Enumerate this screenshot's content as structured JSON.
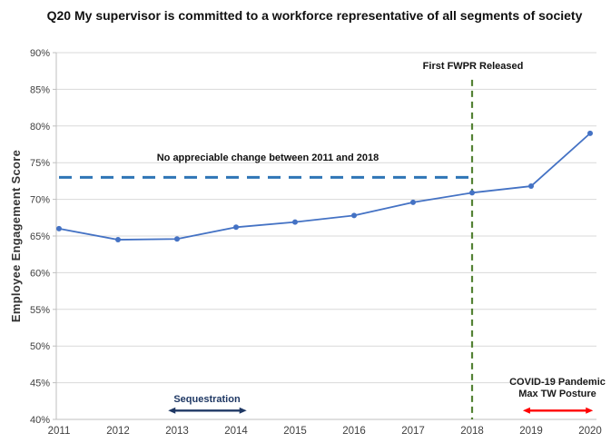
{
  "colors": {
    "series_line": "#4472C4",
    "reference_dashed": "#2E75B6",
    "event_line": "#548235",
    "sequestration_arrow": "#1F3864",
    "covid_arrow": "#FF0000",
    "gridline": "#D9D9D9",
    "axis": "#BFBFBF",
    "tick_text": "#404040"
  },
  "chart_data": {
    "type": "line",
    "title": "Q20 My supervisor is committed to a workforce representative of all segments of society",
    "ylabel": "Employee Engagement Score",
    "xlabel": "",
    "categories": [
      2011,
      2012,
      2013,
      2014,
      2015,
      2016,
      2017,
      2018,
      2019,
      2020
    ],
    "series": [
      {
        "name": "Employee Engagement Score",
        "values": [
          66,
          64.5,
          64.6,
          66.2,
          66.9,
          67.8,
          69.6,
          70.9,
          71.8,
          79
        ]
      }
    ],
    "ylim": [
      40,
      90
    ],
    "ytick_step": 5,
    "ytick_format": "percent",
    "grid": "horizontal",
    "legend": "none",
    "reference_line": {
      "value": 73,
      "x_from": 2011,
      "x_to": 2018,
      "style": "dashed",
      "label": "No appreciable change between 2011 and 2018"
    },
    "event_line": {
      "x": 2018,
      "y_top": 86.3,
      "y_bottom": 40,
      "style": "dashed",
      "label": "First FWPR Released"
    },
    "ranges": [
      {
        "x_from": 2012.85,
        "x_to": 2014.18,
        "y": 41.2,
        "label": "Sequestration"
      },
      {
        "x_from": 2018.86,
        "x_to": 2020.05,
        "y": 41.2,
        "label_line1": "COVID-19 Pandemic",
        "label_line2": "Max TW Posture"
      }
    ]
  }
}
